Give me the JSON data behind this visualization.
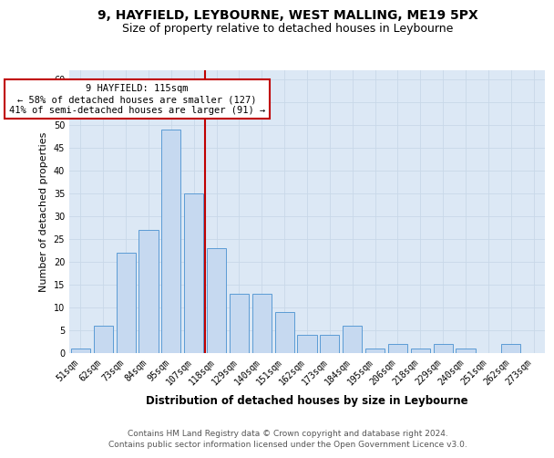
{
  "title1": "9, HAYFIELD, LEYBOURNE, WEST MALLING, ME19 5PX",
  "title2": "Size of property relative to detached houses in Leybourne",
  "xlabel": "Distribution of detached houses by size in Leybourne",
  "ylabel": "Number of detached properties",
  "categories": [
    "51sqm",
    "62sqm",
    "73sqm",
    "84sqm",
    "95sqm",
    "107sqm",
    "118sqm",
    "129sqm",
    "140sqm",
    "151sqm",
    "162sqm",
    "173sqm",
    "184sqm",
    "195sqm",
    "206sqm",
    "218sqm",
    "229sqm",
    "240sqm",
    "251sqm",
    "262sqm",
    "273sqm"
  ],
  "values": [
    1,
    6,
    22,
    27,
    49,
    35,
    23,
    13,
    13,
    9,
    4,
    4,
    6,
    1,
    2,
    1,
    2,
    1,
    0,
    2,
    0
  ],
  "bar_color": "#c6d9f0",
  "bar_edge_color": "#5b9bd5",
  "vline_color": "#c00000",
  "vline_x_bar_index": 5.5,
  "annotation_text": "9 HAYFIELD: 115sqm\n← 58% of detached houses are smaller (127)\n41% of semi-detached houses are larger (91) →",
  "annotation_box_facecolor": "#ffffff",
  "annotation_box_edgecolor": "#c00000",
  "ylim": [
    0,
    62
  ],
  "yticks": [
    0,
    5,
    10,
    15,
    20,
    25,
    30,
    35,
    40,
    45,
    50,
    55,
    60
  ],
  "grid_color": "#c8d8e8",
  "bg_color": "#dce8f5",
  "footer1": "Contains HM Land Registry data © Crown copyright and database right 2024.",
  "footer2": "Contains public sector information licensed under the Open Government Licence v3.0.",
  "title1_fontsize": 10,
  "title2_fontsize": 9,
  "xlabel_fontsize": 8.5,
  "ylabel_fontsize": 8,
  "tick_fontsize": 7,
  "annotation_fontsize": 7.5,
  "footer_fontsize": 6.5
}
